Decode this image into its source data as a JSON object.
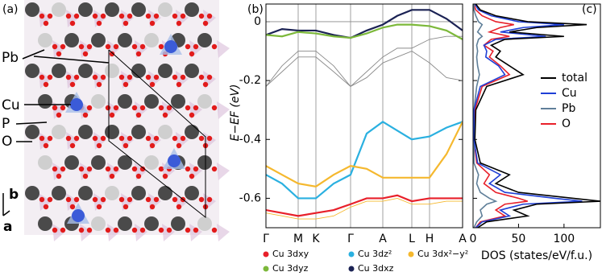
{
  "panel_a": {
    "label": "(a)",
    "atoms": [
      "Pb",
      "Cu",
      "P",
      "O"
    ],
    "axes": [
      "b",
      "a"
    ]
  },
  "chart_data": [
    {
      "type": "line",
      "label": "(b)",
      "ylabel": "E−EF (eV)",
      "x": [
        0,
        20,
        40,
        62,
        84,
        105,
        125,
        145,
        163,
        181,
        203,
        224,
        244
      ],
      "xlim": [
        0,
        244
      ],
      "xticks": [
        {
          "value": 0,
          "label": "Γ"
        },
        {
          "value": 40,
          "label": "M"
        },
        {
          "value": 62,
          "label": "K"
        },
        {
          "value": 105,
          "label": "Γ"
        },
        {
          "value": 145,
          "label": "A"
        },
        {
          "value": 181,
          "label": "L"
        },
        {
          "value": 203,
          "label": "H"
        },
        {
          "value": 244,
          "label": "A"
        }
      ],
      "ylim": [
        -0.7,
        0.06
      ],
      "yticks": [
        -0.6,
        -0.4,
        -0.2,
        0
      ],
      "series": [
        {
          "color": "#8a8a8a",
          "values": [
            -0.22,
            -0.15,
            -0.1,
            -0.1,
            -0.15,
            -0.22,
            -0.17,
            -0.12,
            -0.09,
            -0.09,
            -0.06,
            -0.05,
            -0.05
          ]
        },
        {
          "color": "#8a8a8a",
          "values": [
            -0.22,
            -0.17,
            -0.12,
            -0.12,
            -0.17,
            -0.22,
            -0.19,
            -0.14,
            -0.12,
            -0.1,
            -0.14,
            -0.19,
            -0.2
          ]
        },
        {
          "name": "Cu 3dxz",
          "color": "#1b2254",
          "values": [
            -0.045,
            -0.025,
            -0.03,
            -0.03,
            -0.045,
            -0.055,
            -0.03,
            -0.01,
            0.02,
            0.04,
            0.04,
            0.01,
            -0.03
          ]
        },
        {
          "name": "Cu 3dyz",
          "color": "#7cb83a",
          "values": [
            -0.045,
            -0.05,
            -0.035,
            -0.04,
            -0.05,
            -0.055,
            -0.04,
            -0.02,
            -0.01,
            -0.01,
            -0.015,
            -0.03,
            -0.06
          ]
        },
        {
          "name": "Cu 3dz²",
          "color": "#2ab0e0",
          "values": [
            -0.52,
            -0.55,
            -0.6,
            -0.6,
            -0.55,
            -0.52,
            -0.38,
            -0.34,
            -0.37,
            -0.4,
            -0.39,
            -0.36,
            -0.34
          ]
        },
        {
          "name": "Cu 3dx²−y²",
          "color": "#f5b82e",
          "values": [
            -0.49,
            -0.52,
            -0.55,
            -0.56,
            -0.52,
            -0.49,
            -0.5,
            -0.53,
            -0.53,
            -0.53,
            -0.53,
            -0.45,
            -0.34
          ]
        },
        {
          "name": "Cu 3dxy",
          "color": "#e8202a",
          "values": [
            -0.64,
            -0.65,
            -0.66,
            -0.65,
            -0.64,
            -0.62,
            -0.6,
            -0.6,
            -0.59,
            -0.61,
            -0.6,
            -0.6,
            -0.6
          ]
        },
        {
          "color": "#f5b82e",
          "values": [
            -0.65,
            -0.66,
            -0.67,
            -0.67,
            -0.66,
            -0.63,
            -0.61,
            -0.61,
            -0.6,
            -0.62,
            -0.62,
            -0.61,
            -0.61
          ]
        }
      ]
    },
    {
      "type": "line",
      "orientation": "horizontal",
      "label": "(c)",
      "xlabel": "DOS (states/eV/f.u.)",
      "xlim": [
        0,
        140
      ],
      "xticks": [
        0,
        50,
        100
      ],
      "ylim": [
        -0.7,
        0.06
      ],
      "energy": [
        0.06,
        0.04,
        0.02,
        0.0,
        -0.01,
        -0.02,
        -0.035,
        -0.05,
        -0.06,
        -0.08,
        -0.1,
        -0.12,
        -0.15,
        -0.18,
        -0.22,
        -0.3,
        -0.4,
        -0.48,
        -0.52,
        -0.55,
        -0.58,
        -0.6,
        -0.61,
        -0.62,
        -0.64,
        -0.66,
        -0.68,
        -0.7
      ],
      "series": [
        {
          "name": "total",
          "color": "#000000",
          "values": [
            3,
            8,
            25,
            60,
            125,
            70,
            40,
            100,
            35,
            20,
            30,
            25,
            40,
            55,
            15,
            3,
            2,
            8,
            40,
            25,
            50,
            110,
            140,
            70,
            45,
            60,
            15,
            5
          ]
        },
        {
          "name": "Cu",
          "color": "#1f3fd6",
          "values": [
            2,
            6,
            20,
            50,
            100,
            55,
            30,
            80,
            25,
            12,
            15,
            14,
            28,
            35,
            8,
            1,
            1,
            5,
            30,
            18,
            35,
            90,
            120,
            55,
            30,
            40,
            10,
            3
          ]
        },
        {
          "name": "Pb",
          "color": "#5f7f99",
          "values": [
            1,
            1,
            3,
            6,
            10,
            8,
            5,
            10,
            6,
            4,
            5,
            4,
            5,
            7,
            4,
            1,
            1,
            1,
            6,
            4,
            8,
            18,
            25,
            15,
            8,
            10,
            4,
            1
          ]
        },
        {
          "name": "O",
          "color": "#e8202a",
          "values": [
            1,
            3,
            10,
            25,
            45,
            30,
            18,
            40,
            20,
            12,
            22,
            18,
            30,
            40,
            10,
            2,
            1,
            4,
            18,
            12,
            25,
            50,
            60,
            35,
            25,
            35,
            8,
            3
          ]
        }
      ]
    }
  ]
}
